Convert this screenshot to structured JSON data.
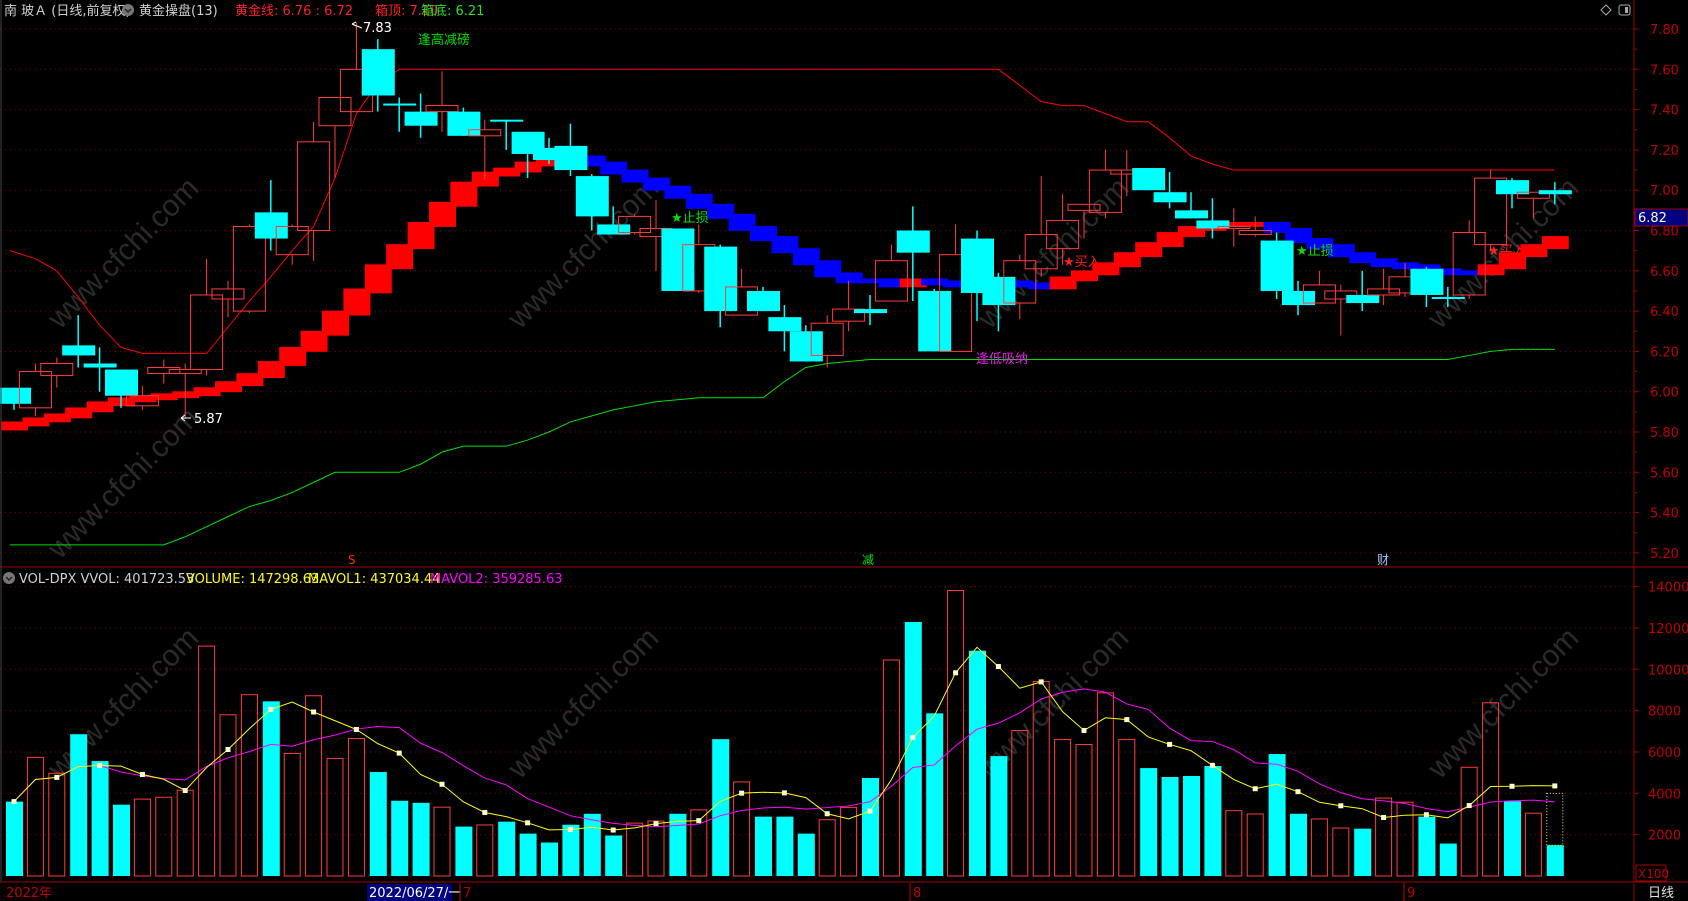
{
  "header": {
    "stock_name": "南 玻Ａ (日线,前复权)",
    "indicator_name": "黄金操盘(13)",
    "gold_line": "黄金线: 6.76 : 6.72",
    "box_top": "箱顶: 7.10",
    "box_bottom": "箱底: 6.21"
  },
  "volume_header": {
    "name": "VOL-DPX VVOL: 401723.53",
    "volume": "VOLUME: 147298.63",
    "mavol1": "MAVOL1: 437034.44",
    "mavol2": "MAVOL2: 359285.63"
  },
  "annotations": {
    "high_label": "7.83",
    "low_label": "5.87",
    "sell_high": "逢高减磅",
    "buy_low": "逢低吸纳",
    "stop_loss_1": "★止损",
    "stop_loss_2": "★止损",
    "buy_1": "★买入",
    "buy_2": "★买入",
    "marker_s": "S",
    "marker_jian": "减",
    "marker_cai": "财"
  },
  "price_axis": {
    "ticks": [
      "7.80",
      "7.60",
      "7.40",
      "7.20",
      "7.00",
      "6.80",
      "6.60",
      "6.40",
      "6.20",
      "6.00",
      "5.80",
      "5.60",
      "5.40",
      "5.20"
    ],
    "current_price": "6.82"
  },
  "volume_axis": {
    "ticks": [
      "14000",
      "12000",
      "10000",
      "8000",
      "6000",
      "4000",
      "2000"
    ],
    "unit": "X100"
  },
  "date_bar": {
    "year": "2022年",
    "cursor_date": "2022/06/27/一",
    "months": [
      "7",
      "8",
      "9"
    ],
    "period": "日线"
  },
  "watermark": "www.cfchi.com",
  "colors": {
    "up": "#ff3c3c",
    "down": "#00ffff",
    "gold_up": "#ff0000",
    "gold_down": "#0000ff",
    "box_top": "#ff0000",
    "box_bottom": "#00e000",
    "mavol1": "#ffff00",
    "mavol2": "#ff00ff",
    "axis": "#a00000"
  },
  "chart_data": {
    "type": "candlestick",
    "ylim": [
      5.2,
      7.85
    ],
    "ohlc": [
      [
        6.02,
        6.02,
        5.91,
        5.94
      ],
      [
        5.92,
        6.14,
        5.88,
        6.1
      ],
      [
        6.08,
        6.17,
        6.02,
        6.14
      ],
      [
        6.23,
        6.38,
        6.12,
        6.18
      ],
      [
        6.14,
        6.22,
        6.0,
        6.12
      ],
      [
        6.11,
        6.11,
        5.92,
        5.98
      ],
      [
        5.93,
        6.03,
        5.91,
        5.98
      ],
      [
        6.09,
        6.16,
        6.04,
        6.12
      ],
      [
        6.09,
        6.14,
        5.87,
        6.11
      ],
      [
        6.11,
        6.66,
        6.08,
        6.48
      ],
      [
        6.46,
        6.55,
        6.37,
        6.51
      ],
      [
        6.4,
        6.83,
        6.39,
        6.82
      ],
      [
        6.89,
        7.05,
        6.7,
        6.76
      ],
      [
        6.68,
        6.83,
        6.63,
        6.82
      ],
      [
        6.8,
        7.34,
        6.65,
        7.24
      ],
      [
        7.32,
        7.46,
        7.06,
        7.46
      ],
      [
        7.39,
        7.83,
        7.39,
        7.6
      ],
      [
        7.7,
        7.75,
        7.39,
        7.47
      ],
      [
        7.43,
        7.46,
        7.29,
        7.42
      ],
      [
        7.39,
        7.48,
        7.26,
        7.32
      ],
      [
        7.39,
        7.59,
        7.29,
        7.42
      ],
      [
        7.39,
        7.41,
        7.27,
        7.27
      ],
      [
        7.27,
        7.35,
        7.05,
        7.3
      ],
      [
        7.35,
        7.35,
        7.2,
        7.34
      ],
      [
        7.29,
        7.29,
        7.06,
        7.18
      ],
      [
        7.21,
        7.26,
        7.13,
        7.15
      ],
      [
        7.22,
        7.33,
        7.07,
        7.1
      ],
      [
        7.07,
        7.08,
        6.8,
        6.87
      ],
      [
        6.83,
        6.92,
        6.78,
        6.78
      ],
      [
        6.79,
        6.88,
        6.78,
        6.87
      ],
      [
        6.77,
        6.95,
        6.6,
        6.81
      ],
      [
        6.81,
        6.81,
        6.5,
        6.5
      ],
      [
        6.5,
        6.83,
        6.49,
        6.73
      ],
      [
        6.72,
        6.73,
        6.32,
        6.4
      ],
      [
        6.38,
        6.61,
        6.38,
        6.52
      ],
      [
        6.5,
        6.52,
        6.4,
        6.4
      ],
      [
        6.37,
        6.43,
        6.2,
        6.3
      ],
      [
        6.3,
        6.33,
        6.15,
        6.15
      ],
      [
        6.18,
        6.38,
        6.12,
        6.34
      ],
      [
        6.35,
        6.55,
        6.3,
        6.41
      ],
      [
        6.41,
        6.48,
        6.33,
        6.39
      ],
      [
        6.45,
        6.73,
        6.45,
        6.65
      ],
      [
        6.8,
        6.92,
        6.45,
        6.69
      ],
      [
        6.5,
        6.51,
        6.2,
        6.2
      ],
      [
        6.2,
        6.83,
        6.2,
        6.68
      ],
      [
        6.76,
        6.8,
        6.35,
        6.49
      ],
      [
        6.57,
        6.59,
        6.3,
        6.43
      ],
      [
        6.44,
        6.68,
        6.36,
        6.65
      ],
      [
        6.61,
        7.07,
        6.57,
        6.78
      ],
      [
        6.71,
        6.98,
        6.63,
        6.85
      ],
      [
        6.9,
        6.93,
        6.76,
        6.93
      ],
      [
        6.89,
        7.2,
        6.86,
        7.1
      ],
      [
        7.08,
        7.2,
        6.97,
        7.1
      ],
      [
        7.11,
        7.11,
        7.0,
        7.0
      ],
      [
        6.99,
        7.09,
        6.91,
        6.94
      ],
      [
        6.9,
        6.99,
        6.86,
        6.86
      ],
      [
        6.85,
        6.96,
        6.76,
        6.81
      ],
      [
        6.81,
        6.91,
        6.72,
        6.82
      ],
      [
        6.78,
        6.87,
        6.77,
        6.8
      ],
      [
        6.75,
        6.79,
        6.46,
        6.5
      ],
      [
        6.5,
        6.55,
        6.38,
        6.43
      ],
      [
        6.44,
        6.6,
        6.44,
        6.53
      ],
      [
        6.46,
        6.53,
        6.28,
        6.5
      ],
      [
        6.48,
        6.6,
        6.4,
        6.44
      ],
      [
        6.48,
        6.61,
        6.43,
        6.51
      ],
      [
        6.49,
        6.64,
        6.47,
        6.57
      ],
      [
        6.61,
        6.62,
        6.42,
        6.48
      ],
      [
        6.47,
        6.52,
        6.42,
        6.46
      ],
      [
        6.48,
        6.85,
        6.46,
        6.79
      ],
      [
        6.73,
        7.1,
        6.7,
        7.06
      ],
      [
        7.05,
        7.06,
        6.91,
        6.98
      ],
      [
        6.96,
        6.99,
        6.86,
        6.99
      ],
      [
        7.0,
        7.04,
        6.93,
        6.98
      ]
    ],
    "gold_line": [
      5.84,
      5.86,
      5.88,
      5.91,
      5.94,
      5.96,
      5.97,
      5.98,
      5.99,
      6.01,
      6.04,
      6.08,
      6.14,
      6.21,
      6.29,
      6.39,
      6.5,
      6.62,
      6.72,
      6.83,
      6.93,
      7.03,
      7.08,
      7.1,
      7.13,
      7.15,
      7.16,
      7.13,
      7.09,
      7.05,
      7.01,
      6.97,
      6.92,
      6.87,
      6.81,
      6.76,
      6.7,
      6.64,
      6.58,
      6.55,
      6.55,
      6.53,
      6.55,
      6.54,
      6.53,
      6.52,
      6.54,
      6.53,
      6.52,
      6.56,
      6.59,
      6.63,
      6.68,
      6.73,
      6.78,
      6.81,
      6.83,
      6.83,
      6.83,
      6.8,
      6.75,
      6.72,
      6.68,
      6.65,
      6.63,
      6.62,
      6.6,
      6.59,
      6.59,
      6.62,
      6.68,
      6.72,
      6.76
    ],
    "box_top": [
      6.7,
      6.66,
      6.6,
      6.47,
      6.33,
      6.22,
      6.19,
      6.19,
      6.19,
      6.19,
      6.32,
      6.45,
      6.57,
      6.7,
      6.82,
      7.06,
      7.38,
      7.53,
      7.6,
      7.6,
      7.6,
      7.6,
      7.6,
      7.6,
      7.6,
      7.6,
      7.6,
      7.6,
      7.6,
      7.6,
      7.6,
      7.6,
      7.6,
      7.6,
      7.6,
      7.6,
      7.6,
      7.6,
      7.6,
      7.6,
      7.6,
      7.6,
      7.6,
      7.6,
      7.6,
      7.6,
      7.6,
      7.52,
      7.44,
      7.42,
      7.42,
      7.38,
      7.34,
      7.34,
      7.26,
      7.17,
      7.13,
      7.1,
      7.1,
      7.1,
      7.1,
      7.1,
      7.1,
      7.1,
      7.1,
      7.1,
      7.1,
      7.1,
      7.1,
      7.1,
      7.1,
      7.1,
      7.1
    ],
    "box_bottom": [
      5.24,
      5.24,
      5.24,
      5.24,
      5.24,
      5.24,
      5.24,
      5.24,
      5.28,
      5.33,
      5.38,
      5.43,
      5.46,
      5.5,
      5.55,
      5.6,
      5.6,
      5.6,
      5.6,
      5.64,
      5.7,
      5.73,
      5.73,
      5.73,
      5.76,
      5.8,
      5.85,
      5.88,
      5.91,
      5.93,
      5.95,
      5.96,
      5.97,
      5.97,
      5.97,
      5.97,
      6.05,
      6.12,
      6.14,
      6.15,
      6.16,
      6.16,
      6.16,
      6.16,
      6.16,
      6.16,
      6.16,
      6.16,
      6.16,
      6.16,
      6.16,
      6.16,
      6.16,
      6.16,
      6.16,
      6.16,
      6.16,
      6.16,
      6.16,
      6.16,
      6.16,
      6.16,
      6.16,
      6.16,
      6.16,
      6.16,
      6.16,
      6.16,
      6.18,
      6.2,
      6.21,
      6.21,
      6.21
    ],
    "volume": [
      3600,
      5740,
      4970,
      6860,
      5560,
      3450,
      3720,
      3810,
      4150,
      11120,
      7800,
      8770,
      8450,
      5930,
      8720,
      5690,
      6650,
      5030,
      3640,
      3540,
      3330,
      2390,
      2470,
      2630,
      2050,
      1620,
      2480,
      3010,
      1960,
      2560,
      2660,
      3010,
      3200,
      6620,
      4550,
      2870,
      2870,
      2050,
      2720,
      3320,
      4740,
      10450,
      12290,
      7870,
      13810,
      10900,
      5800,
      7040,
      9410,
      6600,
      6360,
      8860,
      6600,
      5220,
      4790,
      4840,
      5320,
      3160,
      3000,
      5900,
      3010,
      2760,
      2320,
      2290,
      3770,
      3570,
      2870,
      1570,
      5260,
      8380,
      3620,
      3040,
      1490
    ],
    "volume_ylim": [
      0,
      14500
    ],
    "mavol1_period": 5,
    "mavol2_period": 10,
    "grid": true
  }
}
